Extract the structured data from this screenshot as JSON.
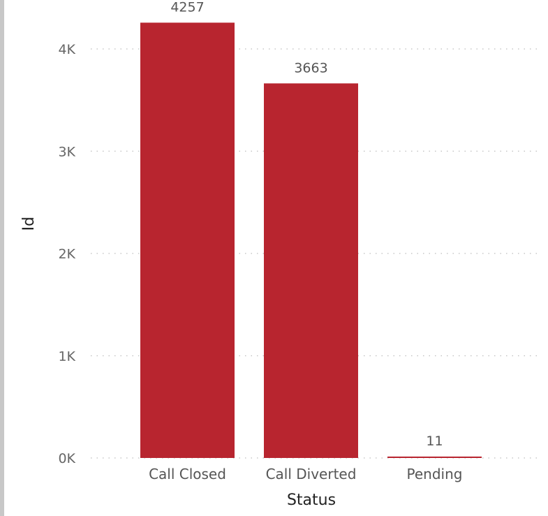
{
  "chart_data": {
    "type": "bar",
    "categories": [
      "Call Closed",
      "Call Diverted",
      "Pending"
    ],
    "values": [
      4257,
      3663,
      11
    ],
    "data_labels": [
      "4257",
      "3663",
      "11"
    ],
    "xlabel": "Status",
    "ylabel": "Id",
    "ylim": [
      0,
      4000
    ],
    "yticks": [
      0,
      1000,
      2000,
      3000,
      4000
    ],
    "ytick_labels": [
      "0K",
      "1K",
      "2K",
      "3K",
      "4K"
    ],
    "grid": true,
    "bar_color": "#b8252f"
  }
}
